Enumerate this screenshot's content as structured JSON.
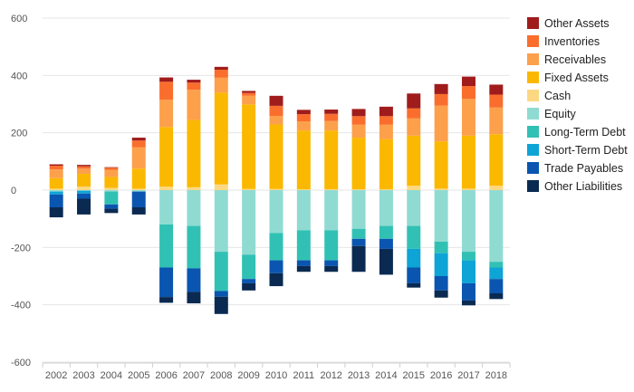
{
  "chart_data": {
    "type": "bar",
    "stacked": true,
    "title": "",
    "xlabel": "",
    "ylabel": "",
    "ylim": [
      -600,
      600
    ],
    "yticks": [
      -600,
      -400,
      -200,
      0,
      200,
      400,
      600
    ],
    "grid": true,
    "legend_position": "right",
    "categories": [
      "2002",
      "2003",
      "2004",
      "2005",
      "2006",
      "2007",
      "2008",
      "2009",
      "2010",
      "2011",
      "2012",
      "2013",
      "2014",
      "2015",
      "2016",
      "2017",
      "2018"
    ],
    "series": [
      {
        "name": "Cash",
        "side": "positive",
        "color": "#FDD882",
        "values": [
          5,
          12,
          8,
          5,
          12,
          10,
          20,
          4,
          4,
          3,
          3,
          3,
          3,
          15,
          5,
          5,
          15
        ]
      },
      {
        "name": "Fixed Assets",
        "side": "positive",
        "color": "#FBB800",
        "values": [
          37,
          45,
          38,
          70,
          208,
          235,
          320,
          295,
          225,
          205,
          205,
          180,
          175,
          175,
          165,
          185,
          180
        ]
      },
      {
        "name": "Receivables",
        "side": "positive",
        "color": "#FCA04C",
        "values": [
          30,
          18,
          25,
          75,
          95,
          105,
          52,
          30,
          30,
          32,
          33,
          45,
          50,
          60,
          125,
          128,
          93
        ]
      },
      {
        "name": "Inventories",
        "side": "positive",
        "color": "#FA6E2D",
        "values": [
          13,
          8,
          7,
          23,
          63,
          25,
          28,
          10,
          35,
          25,
          25,
          30,
          30,
          35,
          40,
          45,
          45
        ]
      },
      {
        "name": "Other Assets",
        "side": "positive",
        "color": "#A01C1C",
        "values": [
          5,
          5,
          2,
          10,
          15,
          10,
          10,
          7,
          35,
          15,
          15,
          25,
          33,
          52,
          35,
          33,
          35
        ]
      },
      {
        "name": "Equity",
        "side": "negative",
        "color": "#8FDBD2",
        "values": [
          -5,
          -2,
          -5,
          -5,
          -120,
          -125,
          -215,
          -225,
          -150,
          -140,
          -140,
          -135,
          -125,
          -125,
          -180,
          -215,
          -250
        ]
      },
      {
        "name": "Long-Term Debt",
        "side": "negative",
        "color": "#31C1B4",
        "values": [
          0,
          0,
          -45,
          0,
          -150,
          -148,
          -137,
          -85,
          -95,
          -105,
          -105,
          -35,
          -45,
          -80,
          -40,
          -30,
          -20
        ]
      },
      {
        "name": "Short-Term Debt",
        "side": "negative",
        "color": "#0EA4D6",
        "values": [
          -10,
          -10,
          0,
          0,
          0,
          0,
          0,
          0,
          0,
          0,
          0,
          0,
          0,
          -65,
          -80,
          -80,
          -40
        ]
      },
      {
        "name": "Trade Payables",
        "side": "negative",
        "color": "#0A55B0",
        "values": [
          -45,
          -18,
          -15,
          -55,
          -103,
          -82,
          -20,
          -15,
          -45,
          -20,
          -20,
          -25,
          -35,
          -55,
          -50,
          -60,
          -50
        ]
      },
      {
        "name": "Other Liabilities",
        "side": "negative",
        "color": "#0A2A52",
        "values": [
          -35,
          -55,
          -15,
          -25,
          -20,
          -40,
          -60,
          -25,
          -45,
          -20,
          -20,
          -90,
          -90,
          -15,
          -25,
          -17,
          -20
        ]
      }
    ],
    "legend_order": [
      "Other Assets",
      "Inventories",
      "Receivables",
      "Fixed Assets",
      "Cash",
      "Equity",
      "Long-Term Debt",
      "Short-Term Debt",
      "Trade Payables",
      "Other Liabilities"
    ]
  }
}
